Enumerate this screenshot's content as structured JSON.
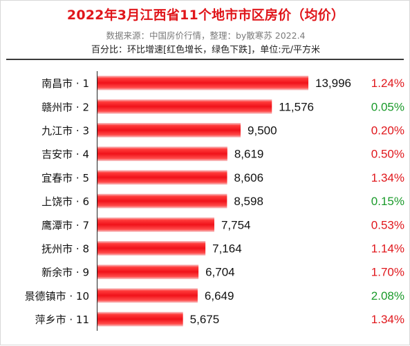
{
  "header": {
    "title": "2022年3月江西省11个地市市区房价（均价）",
    "source": "数据来源：中国房价行情，整理：by散寒苏  2022.4",
    "note": "百分比：环比增速[红色增长，绿色下跌]，单位:元/平方米"
  },
  "colors": {
    "title": "#e0161b",
    "bar": "#e8141a",
    "increase": "#e0161b",
    "decrease": "#1a9a2a"
  },
  "chart_data": {
    "type": "bar",
    "orientation": "horizontal",
    "categories": [
      "南昌市 · 1",
      "赣州市 · 2",
      "九江市 · 3",
      "吉安市 · 4",
      "宜春市 · 5",
      "上饶市 · 6",
      "鹰潭市 · 7",
      "抚州市 · 8",
      "新余市 · 9",
      "景德镇市 · 10",
      "萍乡市 · 11"
    ],
    "values": [
      13996,
      11576,
      9500,
      8619,
      8606,
      8598,
      7754,
      7164,
      6704,
      6649,
      5675
    ],
    "value_labels": [
      "13,996",
      "11,576",
      "9,500",
      "8,619",
      "8,606",
      "8,598",
      "7,754",
      "7,164",
      "6,704",
      "6,649",
      "5,675"
    ],
    "mom_change": [
      "1.24%",
      "0.05%",
      "0.20%",
      "0.50%",
      "1.34%",
      "0.15%",
      "0.53%",
      "1.14%",
      "1.70%",
      "2.08%",
      "1.34%"
    ],
    "mom_color": [
      "increase",
      "decrease",
      "increase",
      "increase",
      "increase",
      "decrease",
      "increase",
      "increase",
      "increase",
      "decrease",
      "increase"
    ],
    "xlim": [
      0,
      13996
    ],
    "grid": false,
    "legend": "none"
  }
}
